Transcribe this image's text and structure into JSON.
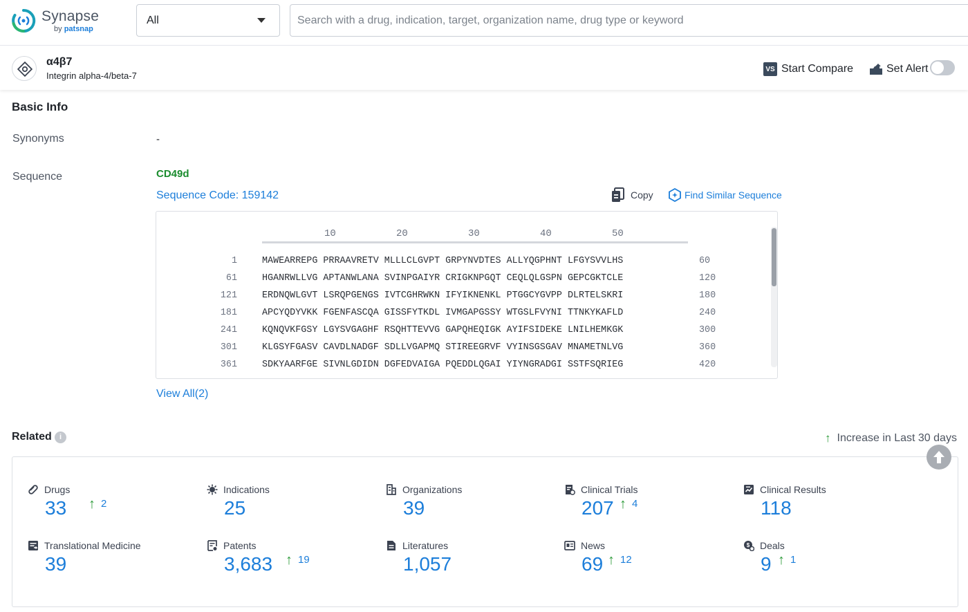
{
  "brand": {
    "name": "Synapse",
    "by": "by",
    "by_brand": "patsnap"
  },
  "search": {
    "scope_value": "All",
    "placeholder": "Search with a drug, indication, target, organization name, drug type or keyword",
    "value": ""
  },
  "target": {
    "name": "α4β7",
    "full_name": "Integrin alpha-4/beta-7",
    "compare_icon_text": "VS",
    "compare_label": "Start Compare",
    "alert_label": "Set Alert",
    "alert_enabled": false
  },
  "basic_info": {
    "title": "Basic Info",
    "synonyms_label": "Synonyms",
    "synonyms_value": "-",
    "sequence_label": "Sequence",
    "sequence_name": "CD49d",
    "sequence_code": "Sequence Code: 159142",
    "copy_label": "Copy",
    "find_similar_label": "Find Similar Sequence",
    "ruler": [
      "10",
      "20",
      "30",
      "40",
      "50"
    ],
    "rows": [
      {
        "start": "1",
        "seq": "MAWEARREPG PRRAAVRETV MLLLCLGVPT GRPYNVDTES ALLYQGPHNT LFGYSVVLHS",
        "end": "60"
      },
      {
        "start": "61",
        "seq": "HGANRWLLVG APTANWLANA SVINPGAIYR CRIGKNPGQT CEQLQLGSPN GEPCGKTCLE",
        "end": "120"
      },
      {
        "start": "121",
        "seq": "ERDNQWLGVT LSRQPGENGS IVTCGHRWKN IFYIKNENKL PTGGCYGVPP DLRTELSKRI",
        "end": "180"
      },
      {
        "start": "181",
        "seq": "APCYQDYVKK FGENFASCQA GISSFYTKDL IVMGAPGSSY WTGSLFVYNI TTNKYKAFLD",
        "end": "240"
      },
      {
        "start": "241",
        "seq": "KQNQVKFGSY LGYSVGAGHF RSQHTTEVVG GAPQHEQIGK AYIFSIDEKE LNILHEMKGK",
        "end": "300"
      },
      {
        "start": "301",
        "seq": "KLGSYFGASV CAVDLNADGF SDLLVGAPMQ STIREEGRVF VYINSGSGAV MNAMETNLVG",
        "end": "360"
      },
      {
        "start": "361",
        "seq": "SDKYAARFGE SIVNLGDIDN DGFEDVAIGA PQEDDLQGAI YIYNGRADGI SSTFSQRIEG",
        "end": "420"
      }
    ],
    "view_all": "View All(2)"
  },
  "related": {
    "title": "Related",
    "info_icon_text": "i",
    "increase_note": "Increase in Last 30 days",
    "up_arrow": "↑",
    "items": [
      {
        "label": "Drugs",
        "value": "33",
        "delta": "2",
        "icon": "pill-icon"
      },
      {
        "label": "Indications",
        "value": "25",
        "delta": "",
        "icon": "virus-icon"
      },
      {
        "label": "Organizations",
        "value": "39",
        "delta": "",
        "icon": "building-icon"
      },
      {
        "label": "Clinical Trials",
        "value": "207",
        "delta": "4",
        "icon": "clinical-trial-icon"
      },
      {
        "label": "Clinical Results",
        "value": "118",
        "delta": "",
        "icon": "clinical-result-icon"
      },
      {
        "label": "Translational Medicine",
        "value": "39",
        "delta": "",
        "icon": "translational-icon"
      },
      {
        "label": "Patents",
        "value": "3,683",
        "delta": "19",
        "icon": "patent-icon"
      },
      {
        "label": "Literatures",
        "value": "1,057",
        "delta": "",
        "icon": "literature-icon"
      },
      {
        "label": "News",
        "value": "69",
        "delta": "12",
        "icon": "news-icon"
      },
      {
        "label": "Deals",
        "value": "9",
        "delta": "1",
        "icon": "deal-icon"
      }
    ]
  },
  "colors": {
    "accent": "#1c7eda",
    "increase_green": "#2e9b3a",
    "sequence_name_green": "#1a8c2e"
  }
}
